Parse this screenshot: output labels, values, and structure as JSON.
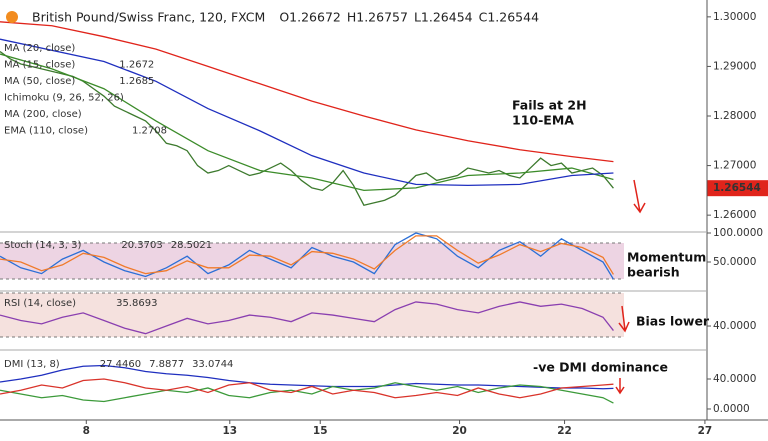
{
  "header": {
    "title": "British Pound/Swiss Franc, 120, FXCM",
    "ohlc": [
      "O1.26672",
      "H1.26757",
      "L1.26454",
      "C1.26544"
    ],
    "last_price": 1.26544
  },
  "annotations": [
    [
      "Fails at 2H",
      "110-EMA"
    ],
    [
      "Momentum",
      "bearish"
    ],
    [
      "Bias lower"
    ],
    [
      "-ve DMI dominance"
    ]
  ],
  "chart_data": [
    {
      "type": "line",
      "xlim": [
        0,
        68
      ],
      "ylim": [
        1.2566,
        1.3034
      ],
      "yticks": [
        {
          "value": 1.3,
          "label": "1.30000"
        },
        {
          "value": 1.29,
          "label": "1.29000"
        },
        {
          "value": 1.28,
          "label": "1.28000"
        },
        {
          "value": 1.27,
          "label": "1.27000"
        },
        {
          "value": 1.26,
          "label": "1.26000"
        }
      ],
      "price": {
        "color": "#3d7a2e",
        "x": [
          0,
          1,
          2,
          3,
          4,
          5,
          6,
          7,
          8,
          9,
          10,
          11,
          12,
          13,
          14,
          15,
          16,
          17,
          18,
          19,
          20,
          21,
          22,
          23,
          24,
          25,
          26,
          27,
          28,
          29,
          30,
          31,
          32,
          33,
          34,
          35,
          36,
          37,
          38,
          39,
          40,
          41,
          42,
          43,
          44,
          45,
          46,
          47,
          48,
          49,
          50,
          51,
          52,
          53,
          54,
          55,
          56,
          57,
          58,
          59
        ],
        "values": [
          1.293,
          1.2915,
          1.2905,
          1.29,
          1.2895,
          1.289,
          1.2885,
          1.288,
          1.287,
          1.2855,
          1.284,
          1.282,
          1.281,
          1.28,
          1.279,
          1.277,
          1.2745,
          1.274,
          1.273,
          1.27,
          1.2685,
          1.269,
          1.27,
          1.269,
          1.268,
          1.2685,
          1.2695,
          1.2705,
          1.269,
          1.267,
          1.2655,
          1.265,
          1.2665,
          1.269,
          1.266,
          1.262,
          1.2625,
          1.263,
          1.264,
          1.266,
          1.268,
          1.2685,
          1.267,
          1.2675,
          1.268,
          1.2695,
          1.269,
          1.2685,
          1.269,
          1.268,
          1.2675,
          1.2695,
          1.2715,
          1.27,
          1.2705,
          1.2685,
          1.269,
          1.2695,
          1.268,
          1.26544
        ]
      },
      "series": [
        {
          "name": "MA (20, close)"
        },
        {
          "name": "MA (15, close)",
          "color": "#3c8c2a",
          "last": 1.2672,
          "x": [
            0,
            5,
            10,
            15,
            20,
            25,
            30,
            35,
            40,
            45,
            50,
            55,
            59
          ],
          "values": [
            1.2925,
            1.2895,
            1.2855,
            1.279,
            1.273,
            1.269,
            1.2675,
            1.265,
            1.2655,
            1.268,
            1.2685,
            1.2695,
            1.2672
          ]
        },
        {
          "name": "MA (50, close)",
          "color": "#1f2fbf",
          "last": 1.2685,
          "x": [
            0,
            10,
            15,
            20,
            25,
            30,
            35,
            40,
            45,
            50,
            55,
            59
          ],
          "values": [
            1.2955,
            1.291,
            1.287,
            1.2815,
            1.277,
            1.272,
            1.2685,
            1.2662,
            1.266,
            1.2662,
            1.268,
            1.2685
          ]
        },
        {
          "name": "Ichimoku (9, 26, 52, 26)"
        },
        {
          "name": "MA (200, close)"
        },
        {
          "name": "EMA (110, close)",
          "color": "#e0241b",
          "last": 1.2708,
          "x": [
            0,
            5,
            10,
            15,
            20,
            25,
            30,
            35,
            40,
            45,
            50,
            55,
            59
          ],
          "values": [
            1.299,
            1.2982,
            1.296,
            1.2935,
            1.29,
            1.2865,
            1.283,
            1.28,
            1.2772,
            1.275,
            1.2732,
            1.2718,
            1.2708
          ]
        }
      ]
    },
    {
      "type": "line",
      "title": "Stoch (14, 3, 3)",
      "xlim": [
        0,
        68
      ],
      "ylim": [
        0,
        100
      ],
      "yticks": [
        {
          "value": 100,
          "label": "100.0000"
        },
        {
          "value": 50,
          "label": "50.0000"
        }
      ],
      "series": [
        {
          "color": "#2c6fd6",
          "last": 20.3703,
          "x": [
            0,
            2,
            4,
            6,
            8,
            10,
            12,
            14,
            16,
            18,
            20,
            22,
            24,
            26,
            28,
            30,
            32,
            34,
            36,
            38,
            40,
            42,
            44,
            46,
            48,
            50,
            52,
            54,
            56,
            58,
            59
          ],
          "values": [
            60,
            40,
            30,
            55,
            70,
            50,
            35,
            25,
            40,
            60,
            30,
            45,
            70,
            55,
            40,
            75,
            60,
            50,
            30,
            80,
            100,
            90,
            60,
            40,
            70,
            85,
            60,
            90,
            70,
            50,
            20.3703
          ]
        },
        {
          "color": "#f07a2a",
          "last": 28.5021,
          "x": [
            0,
            2,
            4,
            6,
            8,
            10,
            12,
            14,
            16,
            18,
            20,
            22,
            24,
            26,
            28,
            30,
            32,
            34,
            36,
            38,
            40,
            42,
            44,
            46,
            48,
            50,
            52,
            54,
            56,
            58,
            59
          ],
          "values": [
            55,
            50,
            35,
            45,
            65,
            58,
            42,
            30,
            35,
            52,
            40,
            40,
            62,
            60,
            45,
            68,
            65,
            55,
            38,
            70,
            95,
            95,
            70,
            48,
            62,
            80,
            68,
            82,
            75,
            58,
            28.5021
          ]
        }
      ]
    },
    {
      "type": "line",
      "title": "RSI (14, close)",
      "xlim": [
        0,
        68
      ],
      "ylim": [
        19,
        72
      ],
      "yticks": [
        {
          "value": 40,
          "label": "40.0000"
        }
      ],
      "series": [
        {
          "color": "#8a3fb0",
          "last": 35.8693,
          "x": [
            0,
            2,
            4,
            6,
            8,
            10,
            12,
            14,
            16,
            18,
            20,
            22,
            24,
            26,
            28,
            30,
            32,
            34,
            36,
            38,
            40,
            42,
            44,
            46,
            48,
            50,
            52,
            54,
            56,
            58,
            59
          ],
          "values": [
            50,
            45,
            42,
            48,
            52,
            45,
            38,
            33,
            40,
            47,
            42,
            45,
            50,
            48,
            44,
            52,
            50,
            47,
            44,
            55,
            62,
            60,
            55,
            52,
            58,
            62,
            58,
            60,
            56,
            48,
            35.8693
          ]
        }
      ]
    },
    {
      "type": "line",
      "title": "DMI (13, 8)",
      "xlim": [
        0,
        68
      ],
      "ylim": [
        -14.7,
        76
      ],
      "yticks": [
        {
          "value": 40,
          "label": "40.0000"
        },
        {
          "value": 0,
          "label": "0.0000"
        }
      ],
      "xticks": [
        {
          "value": 8.3,
          "label": "8"
        },
        {
          "value": 22.1,
          "label": "13"
        },
        {
          "value": 30.8,
          "label": "15"
        },
        {
          "value": 44.2,
          "label": "20"
        },
        {
          "value": 54.3,
          "label": "22"
        },
        {
          "value": 67.8,
          "label": "27"
        }
      ],
      "series": [
        {
          "color": "#1f2fbf",
          "last_text": "27.4460",
          "x": [
            0,
            2,
            4,
            6,
            8,
            10,
            12,
            14,
            16,
            18,
            20,
            22,
            24,
            26,
            28,
            30,
            32,
            34,
            36,
            38,
            40,
            42,
            44,
            46,
            48,
            50,
            52,
            54,
            56,
            58,
            59
          ],
          "values": [
            36,
            40,
            45,
            52,
            57,
            58,
            55,
            50,
            47,
            45,
            42,
            38,
            35,
            33,
            32,
            31,
            30,
            30,
            30,
            32,
            34,
            33,
            32,
            32,
            31,
            30,
            29,
            28,
            28,
            27,
            27.446
          ]
        },
        {
          "color": "#3c9a3a",
          "last": 7.8877,
          "x": [
            0,
            2,
            4,
            6,
            8,
            10,
            12,
            14,
            16,
            18,
            20,
            22,
            24,
            26,
            28,
            30,
            32,
            34,
            36,
            38,
            40,
            42,
            44,
            46,
            48,
            50,
            52,
            54,
            56,
            58,
            59
          ],
          "values": [
            25,
            20,
            15,
            18,
            12,
            10,
            15,
            20,
            25,
            22,
            28,
            18,
            15,
            22,
            25,
            20,
            30,
            25,
            28,
            35,
            30,
            25,
            30,
            22,
            28,
            32,
            30,
            25,
            20,
            15,
            7.8877
          ]
        },
        {
          "color": "#d9332a",
          "last": 33.0744,
          "x": [
            0,
            2,
            4,
            6,
            8,
            10,
            12,
            14,
            16,
            18,
            20,
            22,
            24,
            26,
            28,
            30,
            32,
            34,
            36,
            38,
            40,
            42,
            44,
            46,
            48,
            50,
            52,
            54,
            56,
            58,
            59
          ],
          "values": [
            20,
            25,
            32,
            28,
            38,
            40,
            35,
            28,
            25,
            30,
            22,
            32,
            35,
            25,
            22,
            30,
            20,
            25,
            22,
            15,
            18,
            22,
            18,
            28,
            20,
            15,
            20,
            28,
            30,
            32,
            33.0744
          ]
        }
      ]
    }
  ]
}
